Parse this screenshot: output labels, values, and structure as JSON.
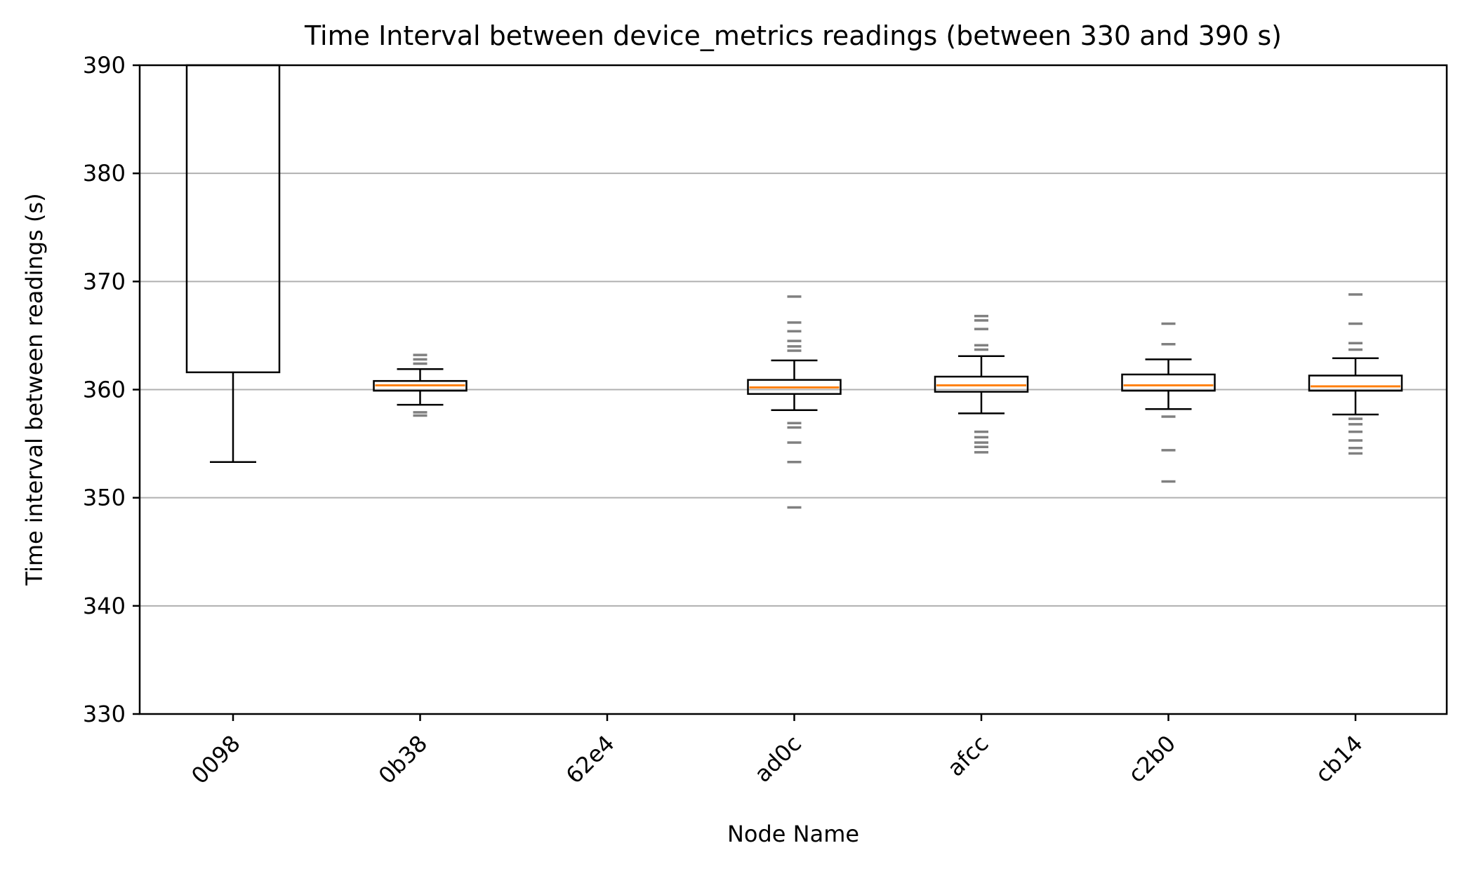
{
  "chart_data": {
    "type": "boxplot",
    "title": "Time Interval between device_metrics readings (between 330 and 390 s)",
    "xlabel": "Node Name",
    "ylabel": "Time interval between readings (s)",
    "ylim": [
      330,
      390
    ],
    "yticks": [
      "330",
      "340",
      "350",
      "360",
      "370",
      "380",
      "390"
    ],
    "grid": "horizontal",
    "colors": {
      "box": "#000000",
      "median": "#ff7f0e",
      "outlier": "#808080",
      "grid": "#b0b0b0"
    },
    "categories": [
      "0098",
      "0b38",
      "62e4",
      "ad0c",
      "afcc",
      "c2b0",
      "cb14"
    ],
    "boxes": [
      {
        "category": "0098",
        "q1": 361.6,
        "median": null,
        "q3": 390,
        "whisker_low": 353.3,
        "whisker_high": null,
        "outliers": []
      },
      {
        "category": "0b38",
        "q1": 359.9,
        "median": 360.4,
        "q3": 360.8,
        "whisker_low": 358.6,
        "whisker_high": 361.9,
        "outliers": [
          357.6,
          357.9,
          362.4,
          362.8,
          363.2
        ]
      },
      {
        "category": "62e4",
        "q1": null,
        "median": null,
        "q3": null,
        "whisker_low": null,
        "whisker_high": null,
        "outliers": []
      },
      {
        "category": "ad0c",
        "q1": 359.6,
        "median": 360.2,
        "q3": 360.9,
        "whisker_low": 358.1,
        "whisker_high": 362.7,
        "outliers": [
          349.1,
          353.3,
          355.1,
          356.5,
          356.9,
          363.6,
          364.0,
          364.5,
          365.4,
          366.2,
          368.6
        ]
      },
      {
        "category": "afcc",
        "q1": 359.8,
        "median": 360.4,
        "q3": 361.2,
        "whisker_low": 357.8,
        "whisker_high": 363.1,
        "outliers": [
          354.2,
          354.7,
          355.1,
          355.6,
          356.1,
          363.7,
          364.1,
          365.6,
          366.4,
          366.8
        ]
      },
      {
        "category": "c2b0",
        "q1": 359.9,
        "median": 360.4,
        "q3": 361.4,
        "whisker_low": 358.2,
        "whisker_high": 362.8,
        "outliers": [
          351.5,
          354.4,
          357.5,
          364.2,
          366.1
        ]
      },
      {
        "category": "cb14",
        "q1": 359.9,
        "median": 360.3,
        "q3": 361.3,
        "whisker_low": 357.7,
        "whisker_high": 362.9,
        "outliers": [
          354.1,
          354.6,
          355.3,
          356.1,
          356.8,
          357.3,
          363.7,
          364.3,
          366.1,
          368.8
        ]
      }
    ]
  }
}
